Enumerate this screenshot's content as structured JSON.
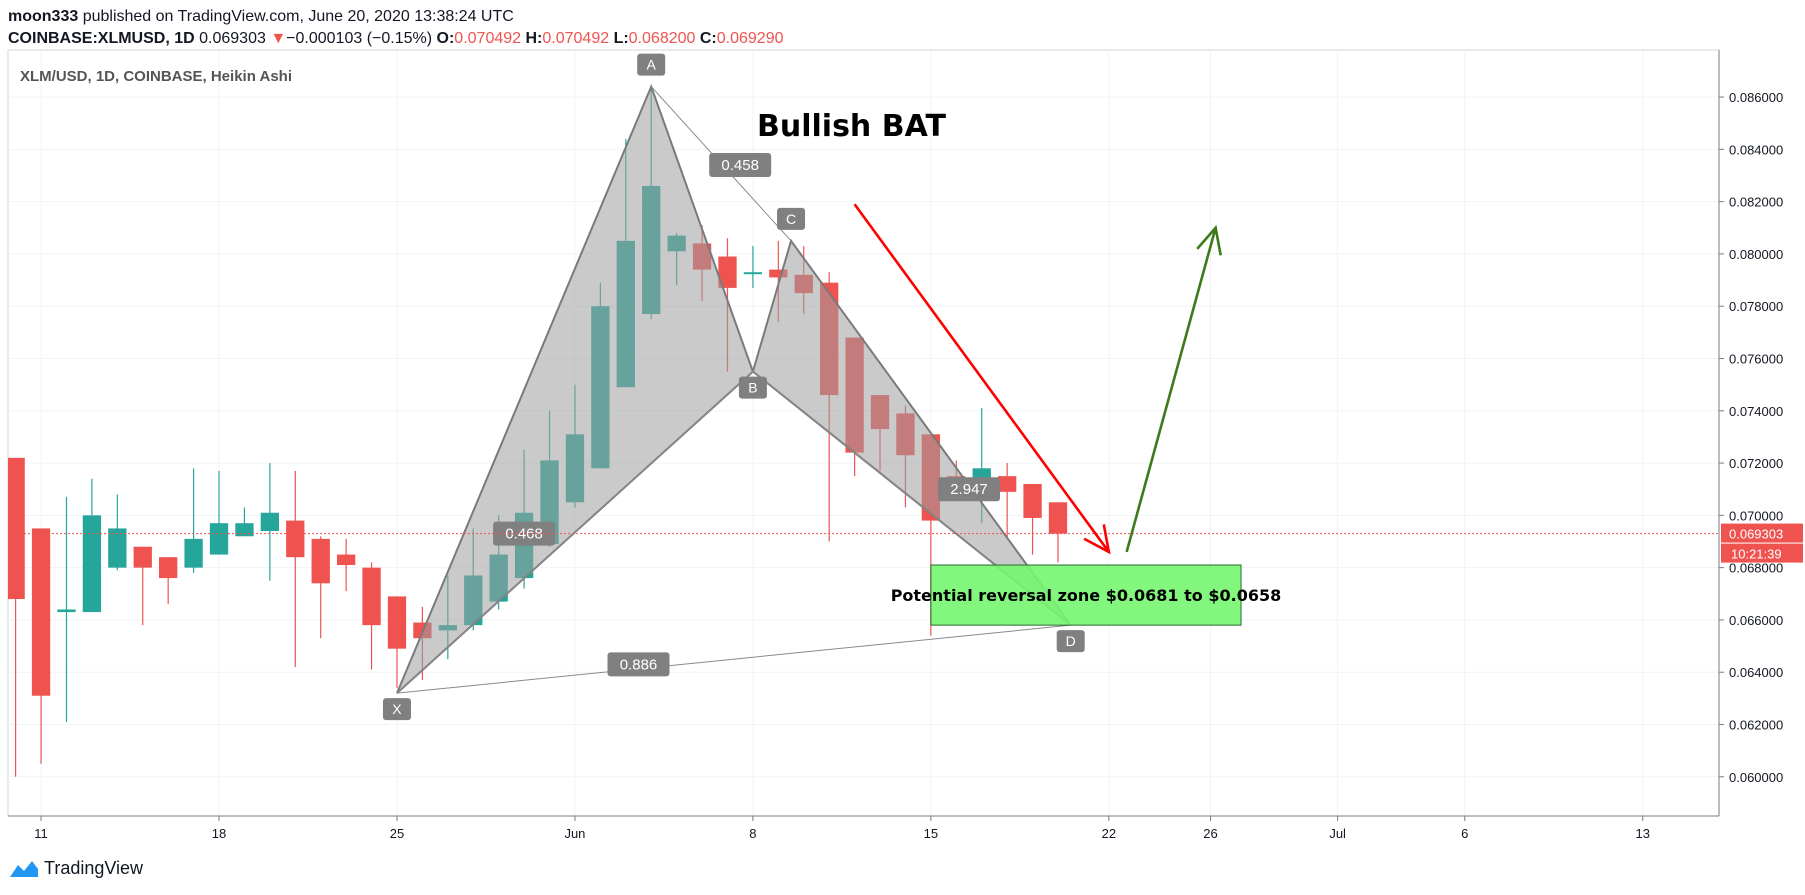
{
  "header": {
    "author": "moon333",
    "published_text": "published on TradingView.com, June 20, 2020 13:38:24 UTC",
    "symbol_line": "COINBASE:XLMUSD, 1D",
    "price": "0.069303",
    "down_arrow": "▼",
    "change": "−0.000103 (−0.15%)",
    "o_label": "O:",
    "o_value": "0.070492",
    "h_label": "H:",
    "h_value": "0.070492",
    "l_label": "L:",
    "l_value": "0.068200",
    "c_label": "C:",
    "c_value": "0.069290"
  },
  "footer": {
    "brand": "TradingView",
    "logo_icon": "tradingview-logo-icon"
  },
  "colors": {
    "up": "#26a69a",
    "down": "#ef5350",
    "pattern_fill": "#9e9e9e",
    "zone_fill": "#76f56f",
    "red_arrow": "#ff0000",
    "green_arrow": "#3c7a1a",
    "label_bg": "#808080",
    "price_tag": "#ef5350"
  },
  "chart_data": {
    "type": "candlestick",
    "title": "XLM/USD, 1D, COINBASE, Heikin Ashi",
    "annotation_title": "Bullish BAT",
    "x_ticks": [
      "11",
      "18",
      "25",
      "Jun",
      "8",
      "15",
      "22",
      "26",
      "Jul",
      "6",
      "13"
    ],
    "x_tick_days": [
      11,
      18,
      25,
      32,
      39,
      46,
      53,
      57,
      62,
      67,
      74
    ],
    "x_range_days": [
      9.7,
      77
    ],
    "y_ticks": [
      "0.086000",
      "0.084000",
      "0.082000",
      "0.080000",
      "0.078000",
      "0.076000",
      "0.074000",
      "0.072000",
      "0.070000",
      "0.068000",
      "0.066000",
      "0.064000",
      "0.062000",
      "0.060000"
    ],
    "y_range": [
      0.0585,
      0.0878
    ],
    "last_price": "0.069303",
    "countdown": "10:21:39",
    "candles": [
      {
        "d": 10,
        "o": 0.0722,
        "h": 0.0722,
        "l": 0.06,
        "c": 0.0668
      },
      {
        "d": 11,
        "o": 0.0695,
        "h": 0.0695,
        "l": 0.0605,
        "c": 0.0631
      },
      {
        "d": 12,
        "o": 0.0663,
        "h": 0.0707,
        "l": 0.0621,
        "c": 0.0664
      },
      {
        "d": 13,
        "o": 0.0663,
        "h": 0.0714,
        "l": 0.0663,
        "c": 0.07
      },
      {
        "d": 14,
        "o": 0.068,
        "h": 0.0708,
        "l": 0.0679,
        "c": 0.0695
      },
      {
        "d": 15,
        "o": 0.0688,
        "h": 0.0688,
        "l": 0.0658,
        "c": 0.068
      },
      {
        "d": 16,
        "o": 0.0684,
        "h": 0.0684,
        "l": 0.0666,
        "c": 0.0676
      },
      {
        "d": 17,
        "o": 0.068,
        "h": 0.0718,
        "l": 0.0678,
        "c": 0.0691
      },
      {
        "d": 18,
        "o": 0.0685,
        "h": 0.0717,
        "l": 0.0685,
        "c": 0.0697
      },
      {
        "d": 19,
        "o": 0.0692,
        "h": 0.0703,
        "l": 0.0692,
        "c": 0.0697
      },
      {
        "d": 20,
        "o": 0.0694,
        "h": 0.072,
        "l": 0.0675,
        "c": 0.0701
      },
      {
        "d": 21,
        "o": 0.0698,
        "h": 0.0717,
        "l": 0.0642,
        "c": 0.0684
      },
      {
        "d": 22,
        "o": 0.0691,
        "h": 0.0692,
        "l": 0.0653,
        "c": 0.0674
      },
      {
        "d": 23,
        "o": 0.0685,
        "h": 0.0691,
        "l": 0.0671,
        "c": 0.0681
      },
      {
        "d": 24,
        "o": 0.068,
        "h": 0.0682,
        "l": 0.0641,
        "c": 0.0658
      },
      {
        "d": 25,
        "o": 0.0669,
        "h": 0.0669,
        "l": 0.0634,
        "c": 0.0649
      },
      {
        "d": 26,
        "o": 0.0659,
        "h": 0.0665,
        "l": 0.0637,
        "c": 0.0653
      },
      {
        "d": 27,
        "o": 0.0656,
        "h": 0.0677,
        "l": 0.0645,
        "c": 0.0658
      },
      {
        "d": 28,
        "o": 0.0658,
        "h": 0.0695,
        "l": 0.0656,
        "c": 0.0677
      },
      {
        "d": 29,
        "o": 0.0667,
        "h": 0.07,
        "l": 0.0664,
        "c": 0.0685
      },
      {
        "d": 30,
        "o": 0.0676,
        "h": 0.0725,
        "l": 0.0672,
        "c": 0.0701
      },
      {
        "d": 31,
        "o": 0.0689,
        "h": 0.074,
        "l": 0.0688,
        "c": 0.0721
      },
      {
        "d": 32,
        "o": 0.0705,
        "h": 0.075,
        "l": 0.0703,
        "c": 0.0731
      },
      {
        "d": 33,
        "o": 0.0718,
        "h": 0.0789,
        "l": 0.0718,
        "c": 0.078
      },
      {
        "d": 34,
        "o": 0.0749,
        "h": 0.0844,
        "l": 0.0749,
        "c": 0.0805
      },
      {
        "d": 35,
        "o": 0.0777,
        "h": 0.0864,
        "l": 0.0775,
        "c": 0.0826
      },
      {
        "d": 36,
        "o": 0.0801,
        "h": 0.0808,
        "l": 0.0788,
        "c": 0.0807
      },
      {
        "d": 37,
        "o": 0.0804,
        "h": 0.0811,
        "l": 0.0782,
        "c": 0.0794
      },
      {
        "d": 38,
        "o": 0.0799,
        "h": 0.0806,
        "l": 0.0755,
        "c": 0.0787
      },
      {
        "d": 39,
        "o": 0.0793,
        "h": 0.0803,
        "l": 0.0787,
        "c": 0.0793
      },
      {
        "d": 40,
        "o": 0.0794,
        "h": 0.0805,
        "l": 0.0774,
        "c": 0.0791
      },
      {
        "d": 41,
        "o": 0.0792,
        "h": 0.0803,
        "l": 0.0777,
        "c": 0.0785
      },
      {
        "d": 42,
        "o": 0.0789,
        "h": 0.0793,
        "l": 0.069,
        "c": 0.0746
      },
      {
        "d": 43,
        "o": 0.0768,
        "h": 0.0768,
        "l": 0.0715,
        "c": 0.0724
      },
      {
        "d": 44,
        "o": 0.0746,
        "h": 0.0746,
        "l": 0.0717,
        "c": 0.0733
      },
      {
        "d": 45,
        "o": 0.0739,
        "h": 0.0742,
        "l": 0.0703,
        "c": 0.0723
      },
      {
        "d": 46,
        "o": 0.0731,
        "h": 0.0731,
        "l": 0.0654,
        "c": 0.0698
      },
      {
        "d": 47,
        "o": 0.0715,
        "h": 0.0721,
        "l": 0.071,
        "c": 0.0712
      },
      {
        "d": 48,
        "o": 0.0713,
        "h": 0.0741,
        "l": 0.0697,
        "c": 0.0718
      },
      {
        "d": 49,
        "o": 0.0715,
        "h": 0.072,
        "l": 0.0691,
        "c": 0.0709
      },
      {
        "d": 50,
        "o": 0.0712,
        "h": 0.0712,
        "l": 0.0685,
        "c": 0.0699
      },
      {
        "d": 51,
        "o": 0.0705,
        "h": 0.0705,
        "l": 0.0682,
        "c": 0.0693
      }
    ],
    "pattern": {
      "points": [
        {
          "label": "X",
          "d": 25,
          "y": 0.0632
        },
        {
          "label": "A",
          "d": 35,
          "y": 0.0864
        },
        {
          "label": "B",
          "d": 39,
          "y": 0.0755
        },
        {
          "label": "C",
          "d": 40.5,
          "y": 0.0805
        },
        {
          "label": "D",
          "d": 51.5,
          "y": 0.0658
        }
      ],
      "ratios": [
        {
          "label": "0.458",
          "d": 38.5,
          "y": 0.0834
        },
        {
          "label": "0.468",
          "d": 30,
          "y": 0.0693
        },
        {
          "label": "2.947",
          "d": 47.5,
          "y": 0.071
        },
        {
          "label": "0.886",
          "d": 34.5,
          "y": 0.0643
        }
      ]
    },
    "zone": {
      "label": "Potential reversal zone $0.0681 to $0.0658",
      "y_top": 0.0681,
      "y_bottom": 0.0658,
      "d_start": 46,
      "d_end": 58.2
    },
    "arrows": [
      {
        "color": "red",
        "from_d": 43,
        "from_y": 0.0819,
        "to_d": 53,
        "to_y": 0.0686
      },
      {
        "color": "green",
        "from_d": 53.7,
        "from_y": 0.0686,
        "to_d": 57.2,
        "to_y": 0.081
      }
    ]
  }
}
